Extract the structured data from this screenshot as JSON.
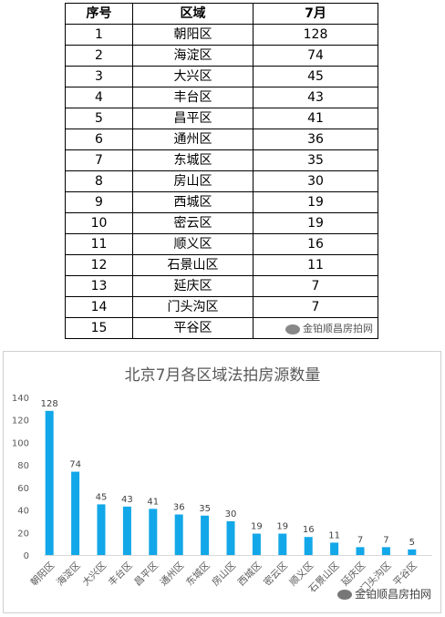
{
  "table": {
    "headers": [
      "序号",
      "区域",
      "7月"
    ],
    "rows": [
      [
        "1",
        "朝阳区",
        "128"
      ],
      [
        "2",
        "海淀区",
        "74"
      ],
      [
        "3",
        "大兴区",
        "45"
      ],
      [
        "4",
        "丰台区",
        "43"
      ],
      [
        "5",
        "昌平区",
        "41"
      ],
      [
        "6",
        "通州区",
        "36"
      ],
      [
        "7",
        "东城区",
        "35"
      ],
      [
        "8",
        "房山区",
        "30"
      ],
      [
        "9",
        "西城区",
        "19"
      ],
      [
        "10",
        "密云区",
        "19"
      ],
      [
        "11",
        "顺义区",
        "16"
      ],
      [
        "12",
        "石景山区",
        "11"
      ],
      [
        "13",
        "延庆区",
        "7"
      ],
      [
        "14",
        "门头沟区",
        "7"
      ],
      [
        "15",
        "平谷区",
        ""
      ]
    ]
  },
  "watermark": "金铂顺昌房拍网",
  "chart_data": {
    "type": "bar",
    "title": "北京7月各区域法拍房源数量",
    "categories": [
      "朝阳区",
      "海淀区",
      "大兴区",
      "丰台区",
      "昌平区",
      "通州区",
      "东城区",
      "房山区",
      "西城区",
      "密云区",
      "顺义区",
      "石景山区",
      "延庆区",
      "门头沟区",
      "平谷区"
    ],
    "values": [
      128,
      74,
      45,
      43,
      41,
      36,
      35,
      30,
      19,
      19,
      16,
      11,
      7,
      7,
      5
    ],
    "ylim": [
      0,
      140
    ],
    "yticks": [
      0,
      20,
      40,
      60,
      80,
      100,
      120,
      140
    ],
    "grid": false,
    "bar_color": "#12a7e8"
  }
}
